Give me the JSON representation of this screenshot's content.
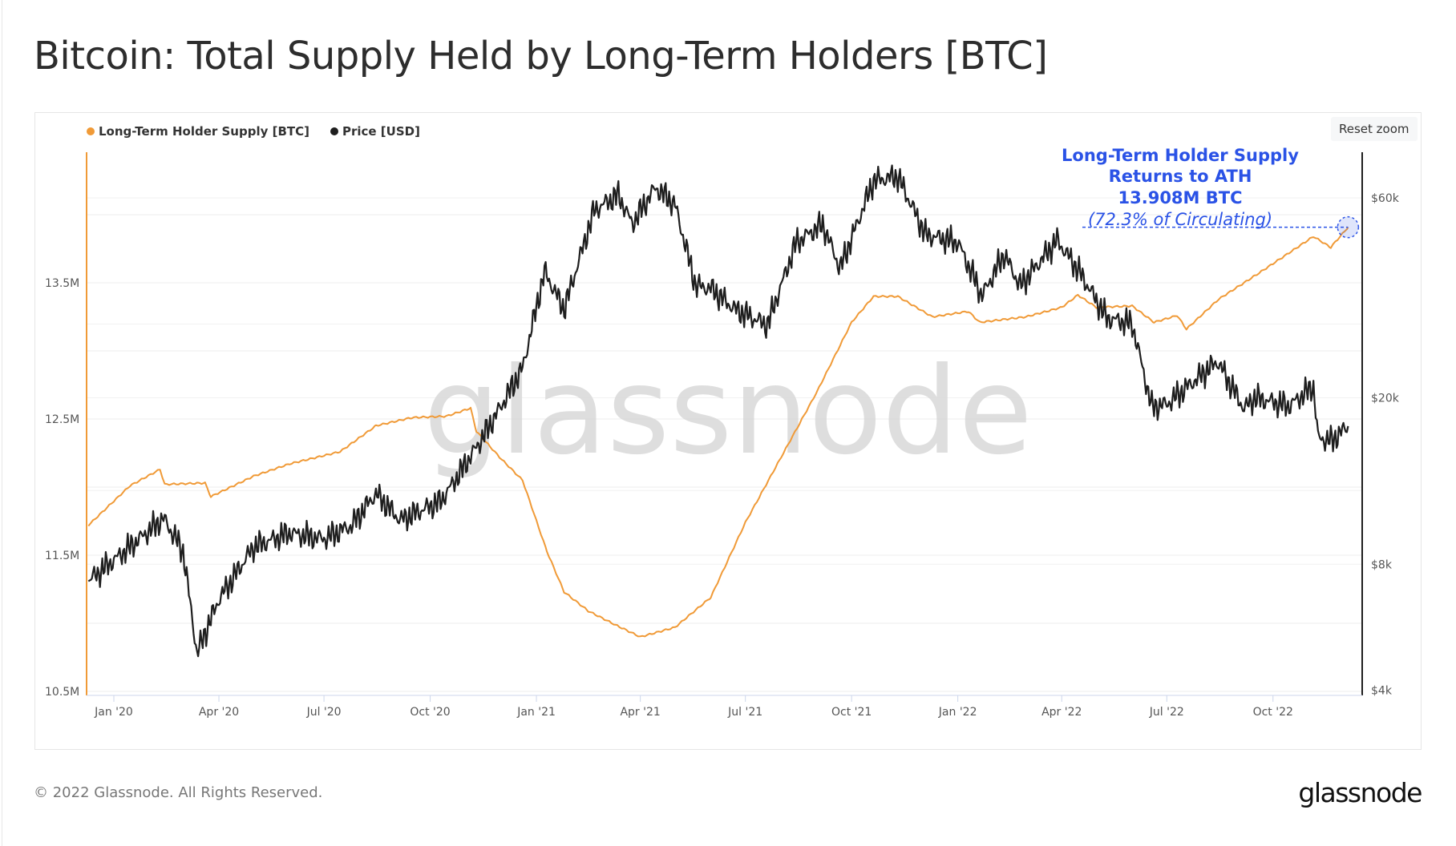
{
  "title": "Bitcoin: Total Supply Held by Long-Term Holders [BTC]",
  "reset_zoom_label": "Reset zoom",
  "footer": {
    "copyright": "© 2022 Glassnode. All Rights Reserved.",
    "logo": "glassnode"
  },
  "watermark": "glassnode",
  "annotation": {
    "line1": "Long-Term Holder Supply",
    "line2": "Returns to ATH",
    "line3": "13.908M BTC",
    "line4": "(72.3% of Circulating)",
    "color": "#2a52e6"
  },
  "chart_data": {
    "type": "line",
    "title": "Bitcoin: Total Supply Held by Long-Term Holders [BTC]",
    "legend_position": "top-left",
    "grid": true,
    "x_ticks": [
      "Jan '20",
      "Apr '20",
      "Jul '20",
      "Oct '20",
      "Jan '21",
      "Apr '21",
      "Jul '21",
      "Oct '21",
      "Jan '22",
      "Apr '22",
      "Jul '22",
      "Oct '22"
    ],
    "x_range": [
      "2019-12-10",
      "2022-12-05"
    ],
    "y_left": {
      "ticks": [
        "10.5M",
        "11.5M",
        "12.5M",
        "13.5M"
      ],
      "range": [
        10.5,
        14.1
      ],
      "unit": "M BTC",
      "color": "#f09a37"
    },
    "y_right": {
      "ticks": [
        "$4k",
        "$8k",
        "$20k",
        "$60k"
      ],
      "tick_values": [
        4000,
        8000,
        20000,
        60000
      ],
      "scale": "log",
      "range": [
        4000,
        80000
      ],
      "color": "#1e1e1e"
    },
    "series": [
      {
        "name": "Long-Term Holder Supply [BTC]",
        "axis": "left",
        "color": "#f09a37",
        "points": [
          [
            "2019-12-10",
            11.72
          ],
          [
            "2020-01-15",
            12.01
          ],
          [
            "2020-02-10",
            12.13
          ],
          [
            "2020-02-14",
            12.02
          ],
          [
            "2020-03-20",
            12.03
          ],
          [
            "2020-03-25",
            11.93
          ],
          [
            "2020-05-01",
            12.08
          ],
          [
            "2020-06-01",
            12.17
          ],
          [
            "2020-07-15",
            12.26
          ],
          [
            "2020-08-15",
            12.45
          ],
          [
            "2020-09-15",
            12.51
          ],
          [
            "2020-10-15",
            12.52
          ],
          [
            "2020-11-05",
            12.58
          ],
          [
            "2020-11-10",
            12.41
          ],
          [
            "2020-11-30",
            12.22
          ],
          [
            "2020-12-20",
            12.05
          ],
          [
            "2021-01-10",
            11.53
          ],
          [
            "2021-01-25",
            11.23
          ],
          [
            "2021-02-15",
            11.09
          ],
          [
            "2021-03-10",
            10.99
          ],
          [
            "2021-04-01",
            10.9
          ],
          [
            "2021-05-01",
            10.97
          ],
          [
            "2021-06-01",
            11.19
          ],
          [
            "2021-07-01",
            11.74
          ],
          [
            "2021-08-01",
            12.22
          ],
          [
            "2021-09-01",
            12.7
          ],
          [
            "2021-10-01",
            13.21
          ],
          [
            "2021-10-20",
            13.4
          ],
          [
            "2021-11-10",
            13.4
          ],
          [
            "2021-12-10",
            13.25
          ],
          [
            "2022-01-10",
            13.29
          ],
          [
            "2022-01-20",
            13.21
          ],
          [
            "2022-03-01",
            13.25
          ],
          [
            "2022-04-01",
            13.32
          ],
          [
            "2022-04-15",
            13.41
          ],
          [
            "2022-05-01",
            13.32
          ],
          [
            "2022-06-01",
            13.33
          ],
          [
            "2022-06-20",
            13.21
          ],
          [
            "2022-07-10",
            13.26
          ],
          [
            "2022-07-18",
            13.16
          ],
          [
            "2022-08-15",
            13.38
          ],
          [
            "2022-09-15",
            13.55
          ],
          [
            "2022-10-15",
            13.72
          ],
          [
            "2022-11-05",
            13.84
          ],
          [
            "2022-11-20",
            13.76
          ],
          [
            "2022-12-05",
            13.908
          ]
        ]
      },
      {
        "name": "Price [USD]",
        "axis": "right",
        "color": "#1e1e1e",
        "points": [
          [
            "2019-12-10",
            7300
          ],
          [
            "2020-01-15",
            8800
          ],
          [
            "2020-02-13",
            10300
          ],
          [
            "2020-03-01",
            8600
          ],
          [
            "2020-03-13",
            4900
          ],
          [
            "2020-04-01",
            6600
          ],
          [
            "2020-05-01",
            8800
          ],
          [
            "2020-06-01",
            9500
          ],
          [
            "2020-07-01",
            9200
          ],
          [
            "2020-07-25",
            9900
          ],
          [
            "2020-08-15",
            11800
          ],
          [
            "2020-09-05",
            10200
          ],
          [
            "2020-10-10",
            11300
          ],
          [
            "2020-10-25",
            13000
          ],
          [
            "2020-11-15",
            16000
          ],
          [
            "2020-12-01",
            19000
          ],
          [
            "2020-12-20",
            23500
          ],
          [
            "2021-01-08",
            40000
          ],
          [
            "2021-01-25",
            32500
          ],
          [
            "2021-02-20",
            56000
          ],
          [
            "2021-03-13",
            61000
          ],
          [
            "2021-03-25",
            52000
          ],
          [
            "2021-04-14",
            63500
          ],
          [
            "2021-05-01",
            57800
          ],
          [
            "2021-05-19",
            37000
          ],
          [
            "2021-06-01",
            36500
          ],
          [
            "2021-06-22",
            32500
          ],
          [
            "2021-07-20",
            29800
          ],
          [
            "2021-08-14",
            47000
          ],
          [
            "2021-09-06",
            51800
          ],
          [
            "2021-09-21",
            40700
          ],
          [
            "2021-10-20",
            66000
          ],
          [
            "2021-11-10",
            67500
          ],
          [
            "2021-12-04",
            49000
          ],
          [
            "2022-01-01",
            47000
          ],
          [
            "2022-01-22",
            35000
          ],
          [
            "2022-02-10",
            44000
          ],
          [
            "2022-02-24",
            37000
          ],
          [
            "2022-03-28",
            47500
          ],
          [
            "2022-04-15",
            40500
          ],
          [
            "2022-05-10",
            31000
          ],
          [
            "2022-06-01",
            30000
          ],
          [
            "2022-06-18",
            19000
          ],
          [
            "2022-07-01",
            19300
          ],
          [
            "2022-08-14",
            24400
          ],
          [
            "2022-09-06",
            18800
          ],
          [
            "2022-09-15",
            20000
          ],
          [
            "2022-10-15",
            19100
          ],
          [
            "2022-11-05",
            21300
          ],
          [
            "2022-11-09",
            16000
          ],
          [
            "2022-11-21",
            15800
          ],
          [
            "2022-12-05",
            17100
          ]
        ]
      }
    ],
    "annotation_point": {
      "date": "2022-12-05",
      "value": 13.908
    }
  }
}
